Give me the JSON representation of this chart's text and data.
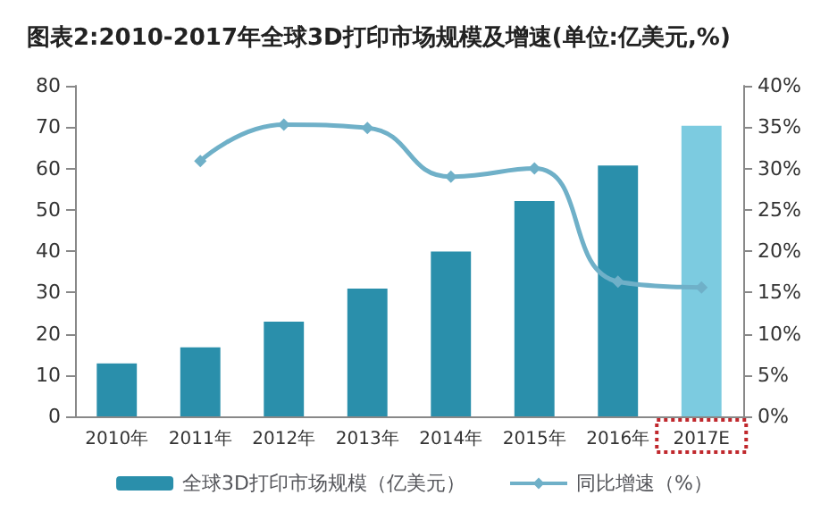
{
  "chart_data": {
    "type": "bar",
    "title": "图表2:2010-2017年全球3D打印市场规模及增速(单位:亿美元,%)",
    "categories": [
      "2010年",
      "2011年",
      "2012年",
      "2013年",
      "2014年",
      "2015年",
      "2016年",
      "2017E"
    ],
    "series": [
      {
        "name": "全球3D打印市场规模（亿美元）",
        "color": "#2a8fab",
        "colors": [
          "#2a8fab",
          "#2a8fab",
          "#2a8fab",
          "#2a8fab",
          "#2a8fab",
          "#2a8fab",
          "#2a8fab",
          "#7ccbe0"
        ],
        "values": [
          12.8,
          16.7,
          22.9,
          30.9,
          39.9,
          52.1,
          60.7,
          70.3
        ]
      },
      {
        "name": "同比增速（%）",
        "type": "line",
        "axis": "y2",
        "color": "#6fb0c8",
        "marker": "diamond",
        "values": [
          null,
          30.9,
          35.3,
          34.9,
          29.0,
          30.0,
          16.3,
          15.6
        ]
      }
    ],
    "ylim": [
      0,
      80
    ],
    "yticks": [
      0,
      10,
      20,
      30,
      40,
      50,
      60,
      70,
      80
    ],
    "y2lim": [
      0,
      40
    ],
    "y2ticks": [
      {
        "value": 0,
        "label": "0%"
      },
      {
        "value": 5,
        "label": "5%"
      },
      {
        "value": 10,
        "label": "10%"
      },
      {
        "value": 15,
        "label": "15%"
      },
      {
        "value": 20,
        "label": "20%"
      },
      {
        "value": 25,
        "label": "25%"
      },
      {
        "value": 30,
        "label": "30%"
      },
      {
        "value": 35,
        "label": "35%"
      },
      {
        "value": 40,
        "label": "40%"
      }
    ],
    "grid": false,
    "legend": "bottom"
  }
}
